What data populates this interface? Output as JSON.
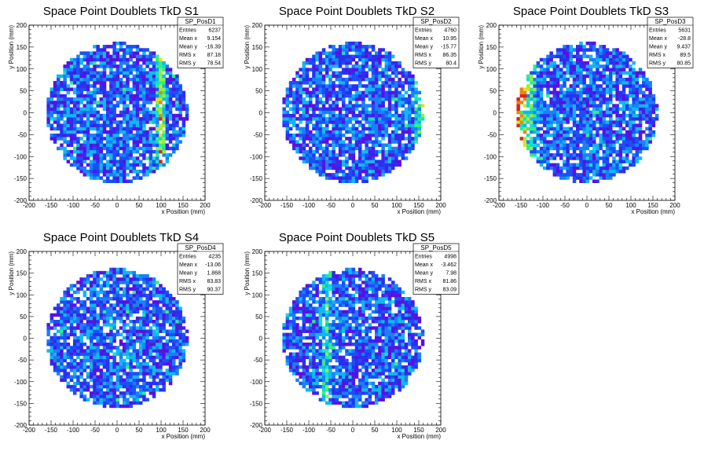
{
  "chart_data": [
    {
      "type": "heatmap",
      "title": "Space Point Doublets TkD S1",
      "xlabel": "x Position (mm)",
      "ylabel": "y Position (mm)",
      "xlim": [
        -200,
        200
      ],
      "ylim": [
        -200,
        200
      ],
      "xticks": [
        -200,
        -150,
        -100,
        -50,
        0,
        50,
        100,
        150,
        200
      ],
      "yticks": [
        -200,
        -150,
        -100,
        -50,
        0,
        50,
        100,
        150,
        200
      ],
      "hist_radius": 160,
      "stats": {
        "name": "SP_PosD1",
        "rows": [
          [
            "Entries",
            "6237"
          ],
          [
            "Mean x",
            "9.154"
          ],
          [
            "Mean y",
            "-16.39"
          ],
          [
            "RMS x",
            "87.18"
          ],
          [
            "RMS y",
            "78.54"
          ]
        ]
      }
    },
    {
      "type": "heatmap",
      "title": "Space Point Doublets TkD S2",
      "xlabel": "x Position (mm)",
      "ylabel": "y Position (mm)",
      "xlim": [
        -200,
        200
      ],
      "ylim": [
        -200,
        200
      ],
      "xticks": [
        -200,
        -150,
        -100,
        -50,
        0,
        50,
        100,
        150,
        200
      ],
      "yticks": [
        -200,
        -150,
        -100,
        -50,
        0,
        50,
        100,
        150,
        200
      ],
      "hist_radius": 160,
      "stats": {
        "name": "SP_PosD2",
        "rows": [
          [
            "Entries",
            "4760"
          ],
          [
            "Mean x",
            "10.95"
          ],
          [
            "Mean y",
            "-15.77"
          ],
          [
            "RMS x",
            "86.35"
          ],
          [
            "RMS y",
            "80.4"
          ]
        ]
      }
    },
    {
      "type": "heatmap",
      "title": "Space Point Doublets TkD S3",
      "xlabel": "x Position (mm)",
      "ylabel": "y Position (mm)",
      "xlim": [
        -200,
        200
      ],
      "ylim": [
        -200,
        200
      ],
      "xticks": [
        -200,
        -150,
        -100,
        -50,
        0,
        50,
        100,
        150,
        200
      ],
      "yticks": [
        -200,
        -150,
        -100,
        -50,
        0,
        50,
        100,
        150,
        200
      ],
      "hist_radius": 160,
      "stats": {
        "name": "SP_PosD3",
        "rows": [
          [
            "Entries",
            "5631"
          ],
          [
            "Mean x",
            "-28.8"
          ],
          [
            "Mean y",
            "9.437"
          ],
          [
            "RMS x",
            "89.5"
          ],
          [
            "RMS y",
            "80.85"
          ]
        ]
      }
    },
    {
      "type": "heatmap",
      "title": "Space Point Doublets TkD S4",
      "xlabel": "x Position (mm)",
      "ylabel": "y Position (mm)",
      "xlim": [
        -200,
        200
      ],
      "ylim": [
        -200,
        200
      ],
      "xticks": [
        -200,
        -150,
        -100,
        -50,
        0,
        50,
        100,
        150,
        200
      ],
      "yticks": [
        -200,
        -150,
        -100,
        -50,
        0,
        50,
        100,
        150,
        200
      ],
      "hist_radius": 160,
      "stats": {
        "name": "SP_PosD4",
        "rows": [
          [
            "Entries",
            "4235"
          ],
          [
            "Mean x",
            "-13.06"
          ],
          [
            "Mean y",
            "1.868"
          ],
          [
            "RMS x",
            "83.83"
          ],
          [
            "RMS y",
            "90.37"
          ]
        ]
      }
    },
    {
      "type": "heatmap",
      "title": "Space Point Doublets TkD S5",
      "xlabel": "x Position (mm)",
      "ylabel": "y Position (mm)",
      "xlim": [
        -200,
        200
      ],
      "ylim": [
        -200,
        200
      ],
      "xticks": [
        -200,
        -150,
        -100,
        -50,
        0,
        50,
        100,
        150,
        200
      ],
      "yticks": [
        -200,
        -150,
        -100,
        -50,
        0,
        50,
        100,
        150,
        200
      ],
      "hist_radius": 160,
      "stats": {
        "name": "SP_PosD5",
        "rows": [
          [
            "Entries",
            "4998"
          ],
          [
            "Mean x",
            "-3.462"
          ],
          [
            "Mean y",
            "7.98"
          ],
          [
            "RMS x",
            "81.86"
          ],
          [
            "RMS y",
            "83.09"
          ]
        ]
      }
    }
  ],
  "palette": [
    "#ffffff",
    "#5a10e0",
    "#2a30f0",
    "#1a50f8",
    "#1a80f8",
    "#10b8f0",
    "#10e0d0",
    "#30f080",
    "#90f040",
    "#e0e020",
    "#f08010",
    "#e02010"
  ]
}
